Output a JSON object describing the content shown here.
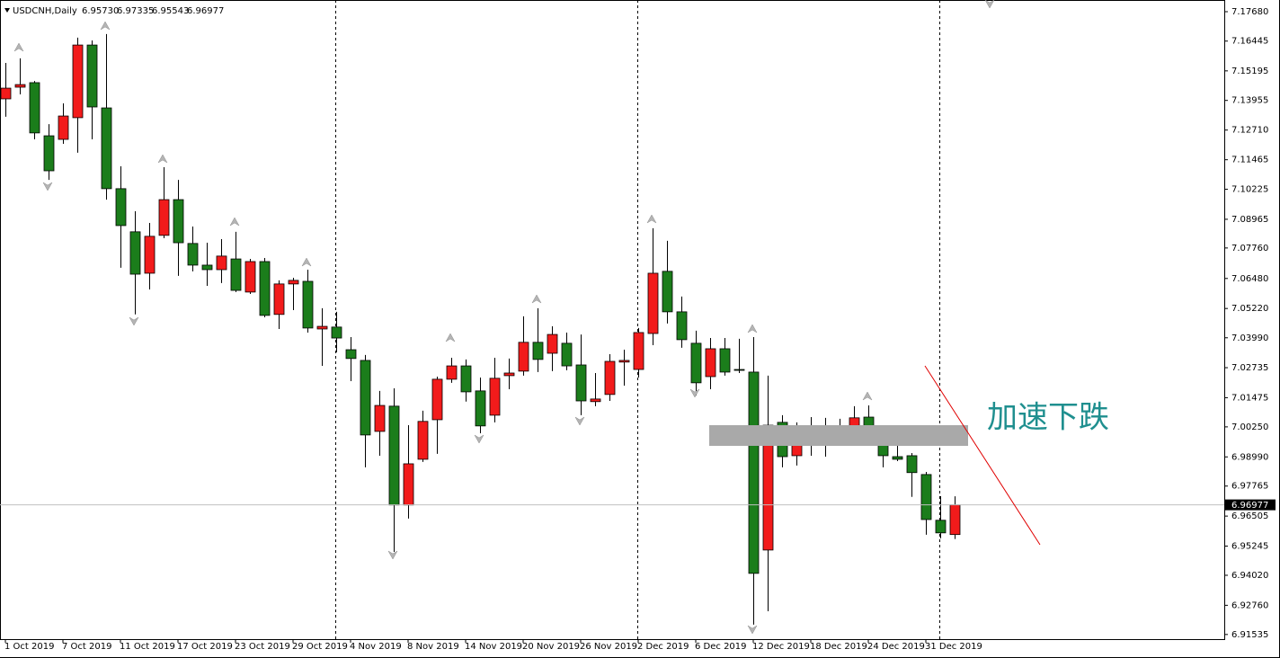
{
  "chart_data": {
    "type": "candlestick",
    "title": "USDCNH,Daily",
    "header_ohlc": [
      "6.95730",
      "6.97335",
      "6.95543",
      "6.96977"
    ],
    "annotation": "加速下跌",
    "up_color": "#f21b1b",
    "down_color": "#1b7d1b",
    "categories": [
      "1 Oct 2019",
      null,
      null,
      null,
      "7 Oct 2019",
      null,
      null,
      null,
      "11 Oct 2019",
      null,
      null,
      null,
      "17 Oct 2019",
      null,
      null,
      null,
      "23 Oct 2019",
      null,
      null,
      null,
      "29 Oct 2019",
      null,
      null,
      null,
      "4 Nov 2019",
      null,
      null,
      null,
      "8 Nov 2019",
      null,
      null,
      null,
      "14 Nov 2019",
      null,
      null,
      null,
      "20 Nov 2019",
      null,
      null,
      null,
      "26 Nov 2019",
      null,
      null,
      null,
      "2 Dec 2019",
      null,
      null,
      null,
      "6 Dec 2019",
      null,
      null,
      null,
      "12 Dec 2019",
      null,
      null,
      null,
      "18 Dec 2019",
      null,
      null,
      null,
      "24 Dec 2019",
      null,
      null,
      null,
      "31 Dec 2019",
      null,
      null
    ],
    "open": [
      7.1402,
      7.1451,
      7.147,
      7.1247,
      7.1232,
      7.1323,
      7.1628,
      7.1364,
      7.1025,
      7.0844,
      7.067,
      7.0829,
      7.0979,
      7.0795,
      7.0704,
      7.0685,
      7.073,
      7.0591,
      7.0719,
      7.0497,
      7.0625,
      7.0636,
      7.0436,
      7.0444,
      7.0349,
      7.0304,
      7.0006,
      7.0112,
      6.9697,
      6.9889,
      7.0055,
      7.0225,
      7.0281,
      7.0176,
      7.0074,
      7.024,
      7.0259,
      7.038,
      7.0334,
      7.0376,
      7.0285,
      7.0131,
      7.0161,
      7.0297,
      7.0266,
      7.0417,
      7.0678,
      7.0508,
      7.0376,
      7.0236,
      7.0353,
      7.0266,
      7.0255,
      6.9508,
      7.0044,
      6.9904,
      6.9961,
      7.0002,
      6.9968,
      6.9983,
      7.0066,
      6.9961,
      6.99,
      6.9904,
      6.9825,
      6.9633,
      6.9573
    ],
    "high": [
      7.1553,
      7.1572,
      7.1477,
      7.1296,
      7.1383,
      7.1659,
      7.1647,
      7.1674,
      7.1119,
      7.093,
      7.0881,
      7.1115,
      7.1062,
      7.0866,
      7.0798,
      7.0813,
      7.0844,
      7.073,
      7.0734,
      7.064,
      7.0651,
      7.0685,
      7.0523,
      7.0508,
      7.0402,
      7.0327,
      7.0176,
      7.0187,
      7.0032,
      7.0093,
      7.0236,
      7.0315,
      7.0308,
      7.0232,
      7.0315,
      7.0312,
      7.0489,
      7.0523,
      7.0447,
      7.0421,
      7.0413,
      7.0251,
      7.033,
      7.0349,
      7.044,
      7.0859,
      7.0806,
      7.0572,
      7.0429,
      7.0398,
      7.0398,
      7.0395,
      7.0402,
      7.024,
      7.0074,
      7.0044,
      7.0066,
      7.0063,
      7.0059,
      7.0112,
      7.0115,
      6.9991,
      6.9976,
      6.9915,
      6.9836,
      6.9734,
      6.97335
    ],
    "low": [
      7.1327,
      7.1421,
      7.1232,
      7.1062,
      7.1213,
      7.1176,
      7.1232,
      7.0979,
      7.0693,
      7.0497,
      7.0602,
      7.0817,
      7.0659,
      7.0678,
      7.0617,
      7.0629,
      7.0591,
      7.0583,
      7.0485,
      7.0436,
      7.0515,
      7.0421,
      7.0281,
      7.0338,
      7.0217,
      6.9855,
      6.9904,
      6.95,
      6.964,
      6.9878,
      6.9912,
      7.021,
      7.0131,
      6.9998,
      7.0044,
      7.0183,
      7.024,
      7.0255,
      7.0259,
      7.0263,
      7.0074,
      7.0112,
      7.0134,
      7.0198,
      7.0232,
      7.0368,
      7.0459,
      7.0357,
      7.0157,
      7.0183,
      7.024,
      7.0251,
      6.9195,
      6.9251,
      6.9855,
      6.9863,
      6.9904,
      6.99,
      6.9946,
      6.9968,
      7.0002,
      6.9855,
      6.9881,
      6.9731,
      6.9572,
      6.9557,
      6.95543
    ],
    "close": [
      7.1447,
      7.1462,
      7.1259,
      7.11,
      7.133,
      7.1628,
      7.1368,
      7.1025,
      7.087,
      7.0666,
      7.0825,
      7.0979,
      7.0798,
      7.0704,
      7.0685,
      7.0742,
      7.0598,
      7.0719,
      7.0493,
      7.0625,
      7.064,
      7.044,
      7.0447,
      7.0398,
      7.0312,
      6.9991,
      7.0115,
      6.9697,
      6.987,
      7.0048,
      7.0225,
      7.0281,
      7.0172,
      7.0029,
      7.0229,
      7.0251,
      7.038,
      7.0308,
      7.0413,
      7.0281,
      7.0134,
      7.0142,
      7.03,
      7.0304,
      7.0421,
      7.067,
      7.0508,
      7.0391,
      7.021,
      7.0353,
      7.0255,
      7.0263,
      6.941,
      7.0032,
      6.99,
      6.9976,
      7.001,
      6.9972,
      7.0002,
      7.0063,
      7.0017,
      6.9904,
      6.9889,
      6.9833,
      6.9636,
      6.958,
      6.96977
    ],
    "ylim": [
      6.9134,
      7.1817
    ],
    "yticks": [
      {
        "value": 7.1768,
        "label": "7.17680"
      },
      7.16445,
      7.15195,
      7.13955,
      {
        "value": 7.1271,
        "label": "7.12710"
      },
      7.11465,
      7.10225,
      7.08965,
      {
        "value": 7.0776,
        "label": "7.07760"
      },
      {
        "value": 7.0648,
        "label": "7.06480"
      },
      {
        "value": 7.0522,
        "label": "7.05220"
      },
      {
        "value": 7.0399,
        "label": "7.03990"
      },
      7.02735,
      7.01475,
      {
        "value": 7.0025,
        "label": "7.00250"
      },
      {
        "value": 6.9899,
        "label": "6.98990"
      },
      6.97765,
      6.96505,
      6.95245,
      {
        "value": 6.9402,
        "label": "6.94020"
      },
      {
        "value": 6.9276,
        "label": "6.92760"
      },
      6.91535
    ]
  }
}
